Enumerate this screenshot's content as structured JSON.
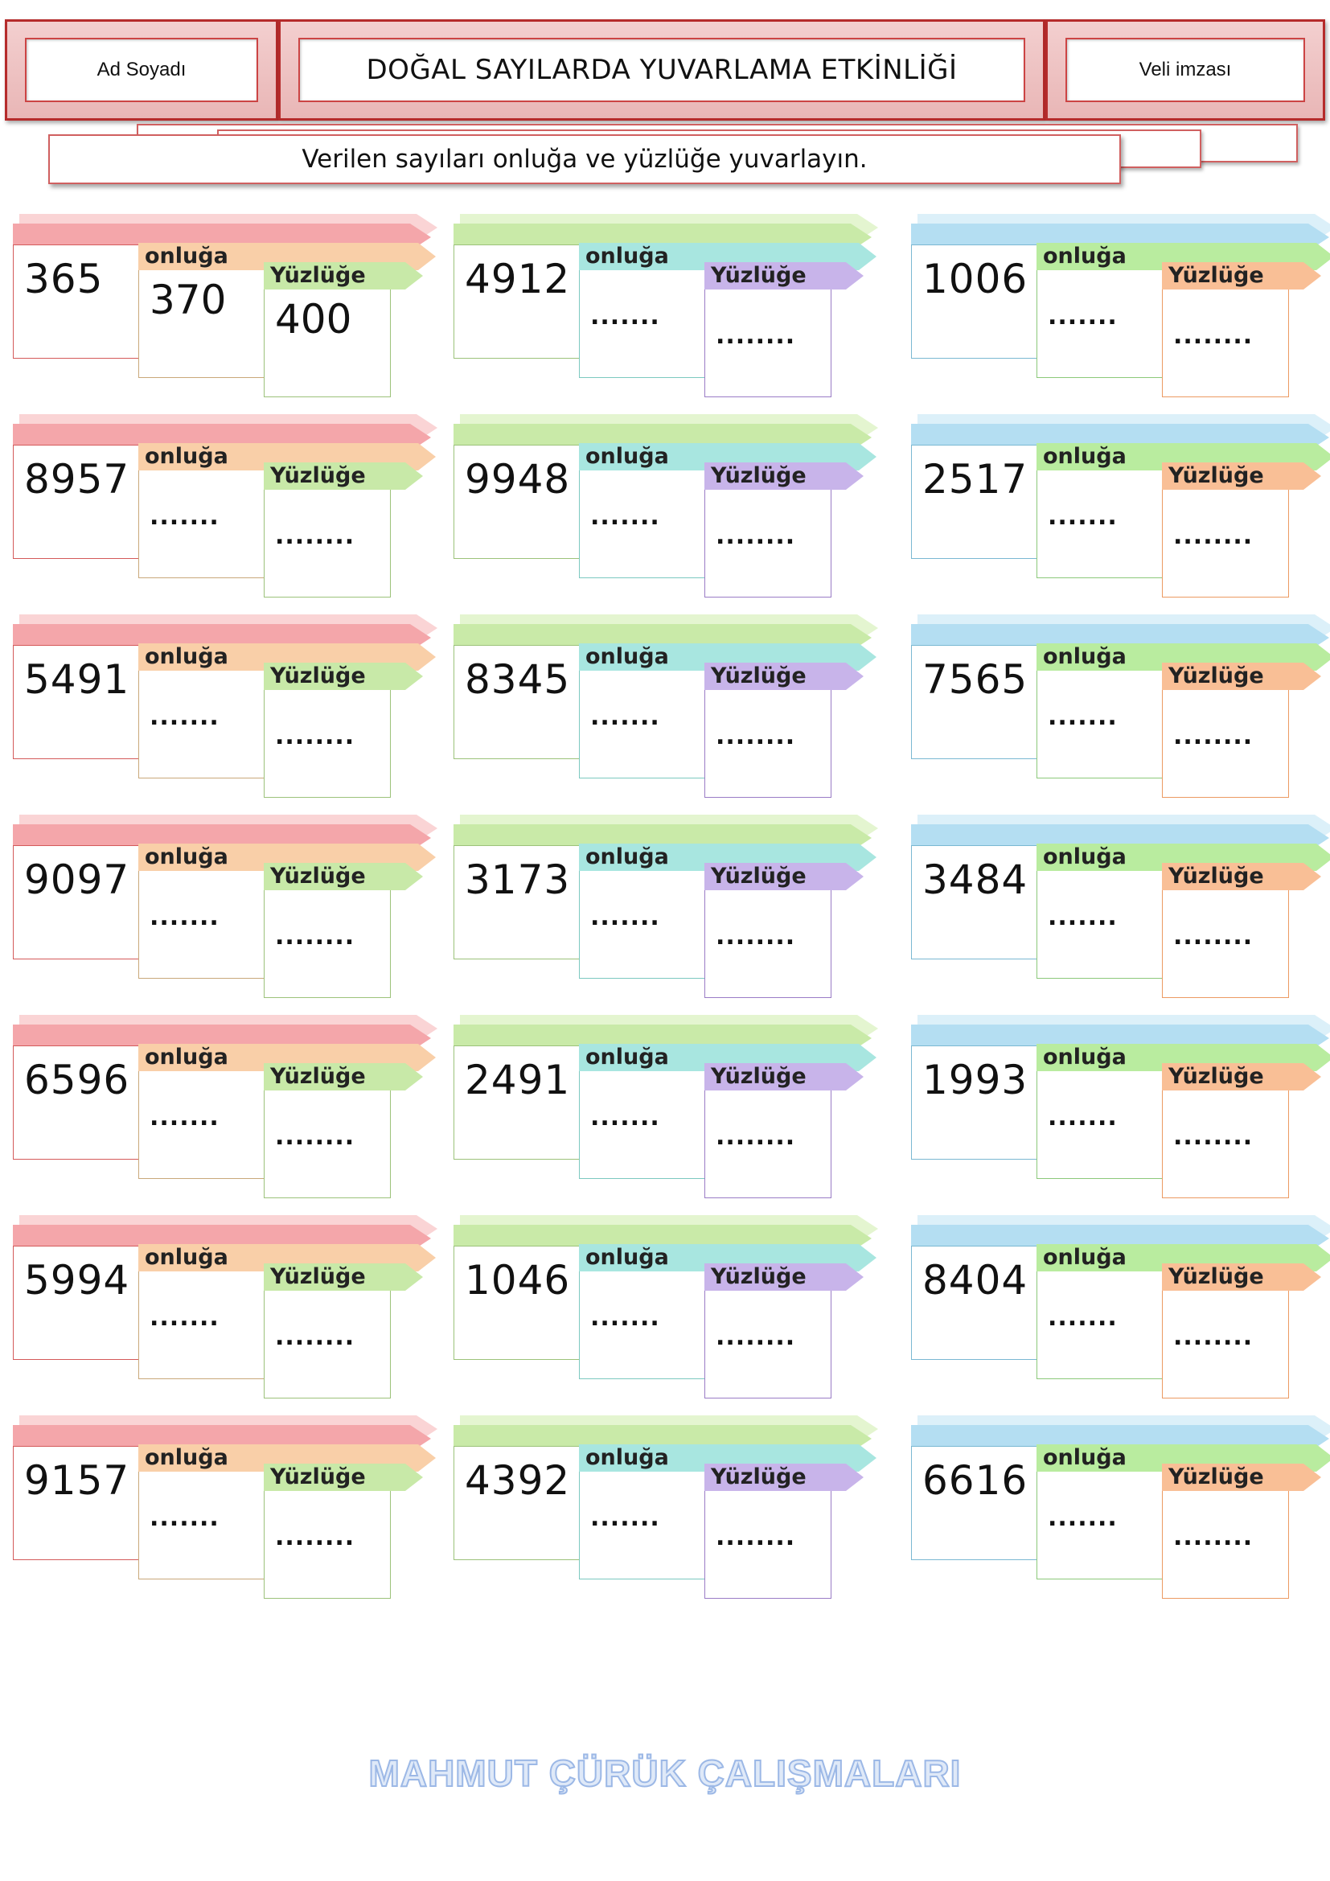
{
  "header": {
    "name_label": "Ad Soyadı",
    "title": "DOĞAL SAYILARDA YUVARLAMA ETKİNLİĞİ",
    "signature_label": "Veli imzası"
  },
  "instruction": "Verilen sayıları onluğa ve yüzlüğe yuvarlayın.",
  "labels": {
    "tens": "onluğa",
    "hundreds": "Yüzlüğe",
    "blank_tens": ".......",
    "blank_hundreds": "........"
  },
  "columns": [
    {
      "top": "#f4a6aa",
      "top2": "#f9c9cb",
      "tens_tag": "#f9cfa8",
      "hundreds_tag": "#c8e9a8",
      "main_border": "#d45a5a",
      "tens_border": "#c9a87a",
      "hundreds_border": "#9cc27a"
    },
    {
      "top": "#c9eaa8",
      "top2": "#ddf2c4",
      "tens_tag": "#a8e6e0",
      "hundreds_tag": "#c8b4ea",
      "main_border": "#9cc27a",
      "tens_border": "#7cc9c0",
      "hundreds_border": "#9a7cc6"
    },
    {
      "top": "#b4def2",
      "top2": "#d3ecf8",
      "tens_tag": "#b9ec9f",
      "hundreds_tag": "#f9bf96",
      "main_border": "#7ab8d2",
      "tens_border": "#8cc97a",
      "hundreds_border": "#ec9a62"
    }
  ],
  "rows": [
    [
      {
        "number": "365",
        "tens": "370",
        "hundreds": "400"
      },
      {
        "number": "4912"
      },
      {
        "number": "1006"
      }
    ],
    [
      {
        "number": "8957"
      },
      {
        "number": "9948"
      },
      {
        "number": "2517"
      }
    ],
    [
      {
        "number": "5491"
      },
      {
        "number": "8345"
      },
      {
        "number": "7565"
      }
    ],
    [
      {
        "number": "9097"
      },
      {
        "number": "3173"
      },
      {
        "number": "3484"
      }
    ],
    [
      {
        "number": "6596"
      },
      {
        "number": "2491"
      },
      {
        "number": "1993"
      }
    ],
    [
      {
        "number": "5994"
      },
      {
        "number": "1046"
      },
      {
        "number": "8404"
      }
    ],
    [
      {
        "number": "9157"
      },
      {
        "number": "4392"
      },
      {
        "number": "6616"
      }
    ]
  ],
  "footer": "MAHMUT ÇÜRÜK ÇALIŞMALARI"
}
